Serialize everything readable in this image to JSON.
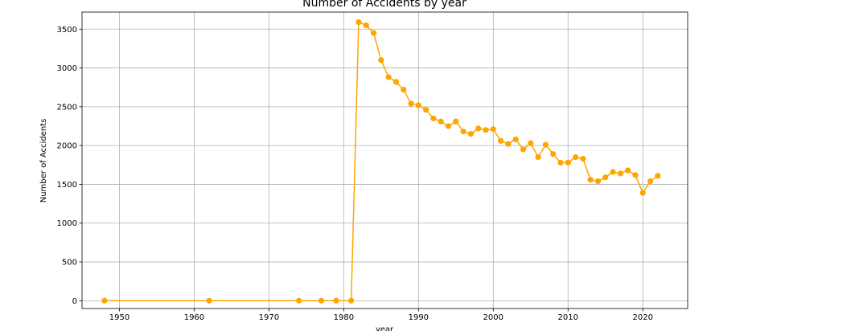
{
  "chart_data": {
    "type": "line",
    "title": "Number of Accidents by year",
    "xlabel": "year",
    "ylabel": "Number of Accidents",
    "xlim": [
      1945,
      2026
    ],
    "ylim": [
      -100,
      3720
    ],
    "xticks": [
      1950,
      1960,
      1970,
      1980,
      1990,
      2000,
      2010,
      2020
    ],
    "yticks": [
      0,
      500,
      1000,
      1500,
      2000,
      2500,
      3000,
      3500
    ],
    "grid": true,
    "marker": "circle",
    "colors": {
      "line": "#FFA500",
      "grid": "#b0b0b0",
      "frame": "#000000"
    },
    "series": [
      {
        "x": [
          1948,
          1962,
          1974,
          1977,
          1979,
          1981,
          1982,
          1983,
          1984,
          1985,
          1986,
          1987,
          1988,
          1989,
          1990,
          1991,
          1992,
          1993,
          1994,
          1995,
          1996,
          1997,
          1998,
          1999,
          2000,
          2001,
          2002,
          2003,
          2004,
          2005,
          2006,
          2007,
          2008,
          2009,
          2010,
          2011,
          2012,
          2013,
          2014,
          2015,
          2016,
          2017,
          2018,
          2019,
          2020,
          2021,
          2022
        ],
        "y": [
          1,
          1,
          1,
          1,
          1,
          1,
          3590,
          3550,
          3450,
          3100,
          2880,
          2820,
          2720,
          2540,
          2520,
          2460,
          2350,
          2310,
          2250,
          2310,
          2180,
          2150,
          2220,
          2200,
          2210,
          2060,
          2020,
          2080,
          1950,
          2030,
          1850,
          2010,
          1890,
          1780,
          1780,
          1850,
          1830,
          1560,
          1540,
          1590,
          1660,
          1640,
          1680,
          1620,
          1390,
          1540,
          1610
        ]
      }
    ]
  }
}
